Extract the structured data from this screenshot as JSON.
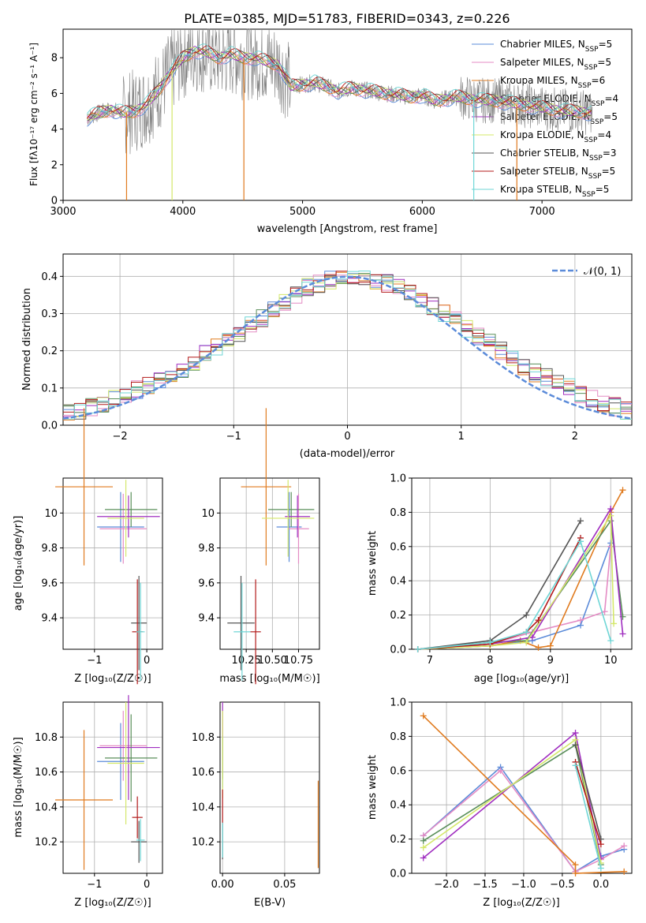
{
  "figure_title": "PLATE=0385, MJD=51783, FIBERID=0343, z=0.226",
  "models": [
    {
      "name": "Chabrier MILES",
      "nssp": "5",
      "color": "#5b8bd9"
    },
    {
      "name": "Salpeter MILES",
      "nssp": "5",
      "color": "#e48bc4"
    },
    {
      "name": "Kroupa MILES",
      "nssp": "6",
      "color": "#e07b1f"
    },
    {
      "name": "Chabrier ELODIE",
      "nssp": "4",
      "color": "#5a8f5a"
    },
    {
      "name": "Salpeter ELODIE",
      "nssp": "5",
      "color": "#a02fc0"
    },
    {
      "name": "Kroupa ELODIE",
      "nssp": "4",
      "color": "#d4e86a"
    },
    {
      "name": "Chabrier STELIB",
      "nssp": "3",
      "color": "#555555"
    },
    {
      "name": "Salpeter STELIB",
      "nssp": "5",
      "color": "#b31b1b"
    },
    {
      "name": "Kroupa STELIB",
      "nssp": "5",
      "color": "#6fd6d6"
    }
  ],
  "nssp_prefix": "N",
  "nssp_sub": "SSP",
  "chart_data": [
    {
      "id": "spectrum",
      "type": "line",
      "xlabel": "wavelength [Angstrom, rest frame]",
      "ylabel": "Flux [fλ10⁻¹⁷ erg cm⁻² s⁻¹ A⁻¹]",
      "xlim": [
        3000,
        7750
      ],
      "ylim": [
        0,
        9.6
      ],
      "xticks": [
        3000,
        4000,
        5000,
        6000,
        7000
      ],
      "yticks": [
        0,
        2,
        4,
        6,
        8
      ],
      "grid": false,
      "legend": "upper right",
      "data_color": "#808080",
      "continuum": [
        [
          3200,
          4.6
        ],
        [
          3300,
          4.9
        ],
        [
          3400,
          5.1
        ],
        [
          3500,
          4.9
        ],
        [
          3600,
          5.0
        ],
        [
          3700,
          5.4
        ],
        [
          3800,
          6.2
        ],
        [
          3900,
          7.2
        ],
        [
          4000,
          8.0
        ],
        [
          4100,
          8.4
        ],
        [
          4200,
          8.3
        ],
        [
          4300,
          8.0
        ],
        [
          4400,
          8.2
        ],
        [
          4500,
          8.0
        ],
        [
          4600,
          8.0
        ],
        [
          4700,
          7.8
        ],
        [
          4800,
          7.6
        ],
        [
          4900,
          6.4
        ],
        [
          5000,
          6.5
        ],
        [
          5100,
          6.6
        ],
        [
          5200,
          6.4
        ],
        [
          5300,
          6.1
        ],
        [
          5400,
          6.3
        ],
        [
          5500,
          6.2
        ],
        [
          5600,
          6.1
        ],
        [
          5700,
          6.0
        ],
        [
          5800,
          5.9
        ],
        [
          5900,
          5.8
        ],
        [
          6000,
          5.9
        ],
        [
          6100,
          5.6
        ],
        [
          6200,
          5.7
        ],
        [
          6300,
          5.8
        ],
        [
          6400,
          5.7
        ],
        [
          6500,
          5.6
        ],
        [
          6600,
          5.6
        ],
        [
          6700,
          5.5
        ],
        [
          6800,
          5.4
        ],
        [
          6900,
          5.3
        ],
        [
          7000,
          5.2
        ],
        [
          7100,
          5.1
        ],
        [
          7200,
          5.0
        ],
        [
          7300,
          5.0
        ],
        [
          7400,
          4.9
        ]
      ],
      "dropouts": [
        [
          3530,
          2
        ],
        [
          3910,
          5
        ],
        [
          4510,
          2
        ],
        [
          6430,
          8
        ],
        [
          6790,
          2
        ]
      ]
    },
    {
      "id": "residual-histogram",
      "type": "bar",
      "xlabel": "(data-model)/error",
      "ylabel": "Normed distribution",
      "xlim": [
        -2.5,
        2.5
      ],
      "ylim": [
        0,
        0.46
      ],
      "xticks": [
        -2,
        -1,
        0,
        1,
        2
      ],
      "yticks": [
        0.0,
        0.1,
        0.2,
        0.3,
        0.4
      ],
      "grid": true,
      "legend": "upper right",
      "legend_label": "𝒩(0, 1)",
      "gaussian_color": "#5b8bd9",
      "bin_width": 0.1,
      "profile": [
        0.03,
        0.04,
        0.05,
        0.06,
        0.075,
        0.085,
        0.095,
        0.11,
        0.12,
        0.135,
        0.15,
        0.17,
        0.19,
        0.21,
        0.23,
        0.25,
        0.27,
        0.29,
        0.31,
        0.33,
        0.35,
        0.37,
        0.38,
        0.39,
        0.4,
        0.4,
        0.4,
        0.39,
        0.38,
        0.37,
        0.36,
        0.34,
        0.32,
        0.3,
        0.28,
        0.26,
        0.24,
        0.22,
        0.2,
        0.18,
        0.16,
        0.14,
        0.13,
        0.11,
        0.1,
        0.08,
        0.07,
        0.06,
        0.05,
        0.04
      ]
    },
    {
      "id": "age-vs-Z",
      "type": "scatter",
      "xlabel": "Z [log₁₀(Z/Z☉)]",
      "ylabel": "age  [log₁₀(age/yr)]",
      "xlim": [
        -1.6,
        0.3
      ],
      "ylim": [
        9.22,
        10.2
      ],
      "xticks": [
        -1,
        0
      ],
      "yticks": [
        9.4,
        9.6,
        9.8,
        10.0
      ],
      "grid": true,
      "points": [
        [
          -0.5,
          9.92,
          0.45,
          0.2
        ],
        [
          -0.45,
          9.91,
          0.45,
          0.2
        ],
        [
          -1.2,
          10.15,
          0.55,
          0.45
        ],
        [
          -0.3,
          10.02,
          0.5,
          0.1
        ],
        [
          -0.35,
          9.98,
          0.6,
          0.12
        ],
        [
          -0.4,
          9.97,
          0.35,
          0.22
        ],
        [
          -0.15,
          9.37,
          0.15,
          0.27
        ],
        [
          -0.18,
          9.32,
          0.1,
          0.3
        ],
        [
          -0.12,
          9.32,
          0.08,
          0.28
        ]
      ]
    },
    {
      "id": "age-vs-mass",
      "type": "scatter",
      "xlabel": "mass [log₁₀(M/M☉)]",
      "ylabel": "",
      "xlim": [
        10.0,
        10.95
      ],
      "ylim": [
        9.22,
        10.2
      ],
      "xticks": [
        10.25,
        10.5,
        10.75
      ],
      "tick_labels": [
        "10.25",
        "10.50",
        "10.75"
      ],
      "yticks": [
        9.4,
        9.6,
        9.8,
        10.0
      ],
      "grid": true,
      "points": [
        [
          10.66,
          9.92,
          0.12,
          0.2
        ],
        [
          10.75,
          9.91,
          0.1,
          0.2
        ],
        [
          10.44,
          10.15,
          0.24,
          0.45
        ],
        [
          10.68,
          10.02,
          0.22,
          0.1
        ],
        [
          10.74,
          9.98,
          0.12,
          0.12
        ],
        [
          10.65,
          9.97,
          0.25,
          0.22
        ],
        [
          10.2,
          9.37,
          0.13,
          0.27
        ],
        [
          10.34,
          9.32,
          0.05,
          0.3
        ],
        [
          10.21,
          9.32,
          0.08,
          0.28
        ]
      ]
    },
    {
      "id": "mass-weight-vs-age",
      "type": "line",
      "xlabel": "age  [log₁₀(age/yr)]",
      "ylabel": "mass weight",
      "xlim": [
        6.7,
        10.35
      ],
      "ylim": [
        0,
        1.0
      ],
      "xticks": [
        7,
        8,
        9,
        10
      ],
      "yticks": [
        0.0,
        0.2,
        0.4,
        0.6,
        0.8,
        1.0
      ],
      "grid": true,
      "series": [
        [
          [
            6.8,
            0.0
          ],
          [
            8.0,
            0.02
          ],
          [
            8.7,
            0.05
          ],
          [
            9.5,
            0.14
          ],
          [
            10.0,
            0.62
          ]
        ],
        [
          [
            6.8,
            0.0
          ],
          [
            8.0,
            0.03
          ],
          [
            8.7,
            0.1
          ],
          [
            9.5,
            0.17
          ],
          [
            9.9,
            0.22
          ],
          [
            10.0,
            0.6
          ]
        ],
        [
          [
            6.8,
            0.0
          ],
          [
            8.0,
            0.02
          ],
          [
            8.5,
            0.05
          ],
          [
            8.8,
            0.01
          ],
          [
            9.0,
            0.02
          ],
          [
            10.0,
            0.8
          ],
          [
            10.2,
            0.93
          ]
        ],
        [
          [
            6.8,
            0.0
          ],
          [
            8.0,
            0.04
          ],
          [
            8.6,
            0.05
          ],
          [
            10.0,
            0.75
          ],
          [
            10.2,
            0.19
          ]
        ],
        [
          [
            6.8,
            0.0
          ],
          [
            8.0,
            0.03
          ],
          [
            8.7,
            0.07
          ],
          [
            10.0,
            0.82
          ],
          [
            10.2,
            0.09
          ]
        ],
        [
          [
            6.8,
            0.0
          ],
          [
            8.0,
            0.02
          ],
          [
            8.6,
            0.04
          ],
          [
            10.0,
            0.78
          ],
          [
            10.05,
            0.15
          ]
        ],
        [
          [
            6.8,
            0.0
          ],
          [
            8.0,
            0.05
          ],
          [
            8.6,
            0.2
          ],
          [
            9.5,
            0.75
          ]
        ],
        [
          [
            6.8,
            0.0
          ],
          [
            8.0,
            0.03
          ],
          [
            8.6,
            0.1
          ],
          [
            8.8,
            0.17
          ],
          [
            9.5,
            0.65
          ]
        ],
        [
          [
            6.8,
            0.0
          ],
          [
            8.0,
            0.04
          ],
          [
            8.6,
            0.1
          ],
          [
            9.5,
            0.63
          ],
          [
            10.0,
            0.05
          ]
        ]
      ]
    },
    {
      "id": "mass-vs-Z",
      "type": "scatter",
      "xlabel": "Z [log₁₀(Z/Z☉)]",
      "ylabel": "mass [log₁₀(M/M☉)]",
      "xlim": [
        -1.6,
        0.3
      ],
      "ylim": [
        10.02,
        11.0
      ],
      "xticks": [
        -1,
        0
      ],
      "yticks": [
        10.2,
        10.4,
        10.6,
        10.8
      ],
      "grid": true,
      "points": [
        [
          -0.5,
          10.66,
          0.45,
          0.22
        ],
        [
          -0.45,
          10.75,
          0.45,
          0.2
        ],
        [
          -1.2,
          10.44,
          0.55,
          0.4
        ],
        [
          -0.3,
          10.68,
          0.5,
          0.25
        ],
        [
          -0.35,
          10.74,
          0.6,
          0.3
        ],
        [
          -0.4,
          10.65,
          0.35,
          0.35
        ],
        [
          -0.15,
          10.2,
          0.15,
          0.12
        ],
        [
          -0.18,
          10.34,
          0.1,
          0.12
        ],
        [
          -0.12,
          10.21,
          0.08,
          0.12
        ]
      ]
    },
    {
      "id": "mass-vs-ebv",
      "type": "scatter",
      "xlabel": "E(B-V)",
      "ylabel": "",
      "xlim": [
        -0.002,
        0.078
      ],
      "ylim": [
        10.02,
        11.0
      ],
      "xticks": [
        0.0,
        0.05
      ],
      "tick_labels": [
        "0.00",
        "0.05"
      ],
      "yticks": [
        10.2,
        10.4,
        10.6,
        10.8
      ],
      "grid": true,
      "points": [
        [
          0.0,
          10.66,
          0,
          0.15
        ],
        [
          0.0,
          10.75,
          0,
          0.15
        ],
        [
          0.077,
          10.3,
          0,
          0.25
        ],
        [
          0.0,
          10.68,
          0,
          0.12
        ],
        [
          0.0,
          10.9,
          0,
          0.1
        ],
        [
          0.0,
          10.7,
          0,
          0.25
        ],
        [
          0.0,
          10.2,
          0,
          0.1
        ],
        [
          0.0,
          10.4,
          0,
          0.1
        ],
        [
          0.0,
          10.21,
          0,
          0.1
        ]
      ]
    },
    {
      "id": "mass-weight-vs-Z",
      "type": "line",
      "xlabel": "Z [log₁₀(Z/Z☉)]",
      "ylabel": "mass weight",
      "xlim": [
        -2.45,
        0.4
      ],
      "ylim": [
        0,
        1.0
      ],
      "xticks": [
        -2.0,
        -1.5,
        -1.0,
        -0.5,
        0.0
      ],
      "tick_labels": [
        "−2.0",
        "−1.5",
        "−1.0",
        "−0.5",
        "0.0"
      ],
      "yticks": [
        0.0,
        0.2,
        0.4,
        0.6,
        0.8,
        1.0
      ],
      "grid": true,
      "series": [
        [
          [
            -2.3,
            0.22
          ],
          [
            -1.3,
            0.62
          ],
          [
            -0.33,
            0.01
          ],
          [
            0.0,
            0.1
          ],
          [
            0.3,
            0.14
          ]
        ],
        [
          [
            -2.3,
            0.22
          ],
          [
            -1.3,
            0.6
          ],
          [
            -0.33,
            0.01
          ],
          [
            0.0,
            0.08
          ],
          [
            0.3,
            0.16
          ]
        ],
        [
          [
            -2.3,
            0.92
          ],
          [
            -0.33,
            0.05
          ],
          [
            -0.33,
            0.0
          ],
          [
            0.3,
            0.01
          ]
        ],
        [
          [
            -2.3,
            0.19
          ],
          [
            -0.33,
            0.75
          ],
          [
            0.0,
            0.05
          ]
        ],
        [
          [
            -2.3,
            0.09
          ],
          [
            -0.33,
            0.82
          ],
          [
            0.0,
            0.09
          ]
        ],
        [
          [
            -2.3,
            0.15
          ],
          [
            -0.33,
            0.78
          ],
          [
            0.0,
            0.06
          ]
        ],
        [
          [
            -0.33,
            0.75
          ],
          [
            0.0,
            0.2
          ]
        ],
        [
          [
            -0.33,
            0.65
          ],
          [
            0.0,
            0.17
          ]
        ],
        [
          [
            -0.33,
            0.63
          ],
          [
            0.0,
            0.03
          ]
        ]
      ]
    }
  ]
}
